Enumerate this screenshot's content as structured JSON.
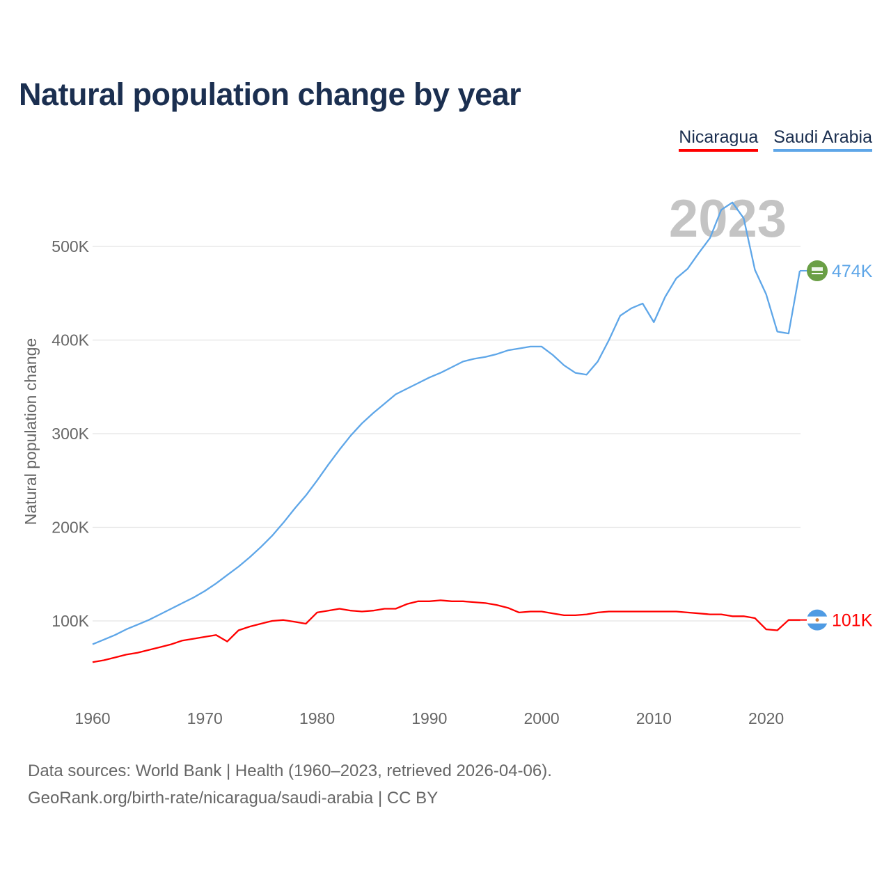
{
  "title": "Natural population change by year",
  "source_lines": [
    "Data sources: World Bank | Health (1960–2023, retrieved 2026-04-06).",
    "GeoRank.org/birth-rate/nicaragua/saudi-arabia | CC BY"
  ],
  "chart_data": {
    "type": "line",
    "title": "Natural population change by year",
    "xlabel": "",
    "ylabel": "Natural population change",
    "year_watermark": "2023",
    "xlim": [
      1960,
      2023
    ],
    "ylim": [
      0,
      560000
    ],
    "x_ticks": [
      1960,
      1970,
      1980,
      1990,
      2000,
      2010,
      2020
    ],
    "y_ticks": [
      100000,
      200000,
      300000,
      400000,
      500000
    ],
    "y_tick_labels": [
      "100K",
      "200K",
      "300K",
      "400K",
      "500K"
    ],
    "grid": true,
    "legend_placement": "top-right",
    "x": [
      1960,
      1961,
      1962,
      1963,
      1964,
      1965,
      1966,
      1967,
      1968,
      1969,
      1970,
      1971,
      1972,
      1973,
      1974,
      1975,
      1976,
      1977,
      1978,
      1979,
      1980,
      1981,
      1982,
      1983,
      1984,
      1985,
      1986,
      1987,
      1988,
      1989,
      1990,
      1991,
      1992,
      1993,
      1994,
      1995,
      1996,
      1997,
      1998,
      1999,
      2000,
      2001,
      2002,
      2003,
      2004,
      2005,
      2006,
      2007,
      2008,
      2009,
      2010,
      2011,
      2012,
      2013,
      2014,
      2015,
      2016,
      2017,
      2018,
      2019,
      2020,
      2021,
      2022,
      2023
    ],
    "series": [
      {
        "name": "Nicaragua",
        "color": "#ff0000",
        "end_label": "101K",
        "flag": "nicaragua-flag",
        "values": [
          56,
          58,
          61,
          64,
          66,
          69,
          72,
          75,
          79,
          81,
          83,
          85,
          78,
          90,
          94,
          97,
          100,
          101,
          99,
          97,
          109,
          111,
          113,
          111,
          110,
          111,
          113,
          113,
          118,
          121,
          121,
          122,
          121,
          121,
          120,
          119,
          117,
          114,
          109,
          110,
          110,
          108,
          106,
          106,
          107,
          109,
          110,
          110,
          110,
          110,
          110,
          110,
          110,
          109,
          108,
          107,
          107,
          105,
          105,
          103,
          91,
          90,
          101,
          101
        ]
      },
      {
        "name": "Saudi Arabia",
        "color": "#5ea6e8",
        "end_label": "474K",
        "flag": "saudi-arabia-flag",
        "values": [
          75,
          80,
          85,
          91,
          96,
          101,
          107,
          113,
          119,
          125,
          132,
          140,
          149,
          158,
          168,
          179,
          191,
          205,
          220,
          234,
          250,
          267,
          283,
          298,
          311,
          322,
          332,
          342,
          348,
          354,
          360,
          365,
          371,
          377,
          380,
          382,
          385,
          389,
          391,
          393,
          393,
          384,
          373,
          365,
          363,
          377,
          400,
          426,
          434,
          439,
          419,
          446,
          466,
          476,
          493,
          509,
          539,
          547,
          530,
          475,
          449,
          409,
          407,
          474
        ]
      }
    ],
    "value_unit": "thousands"
  }
}
